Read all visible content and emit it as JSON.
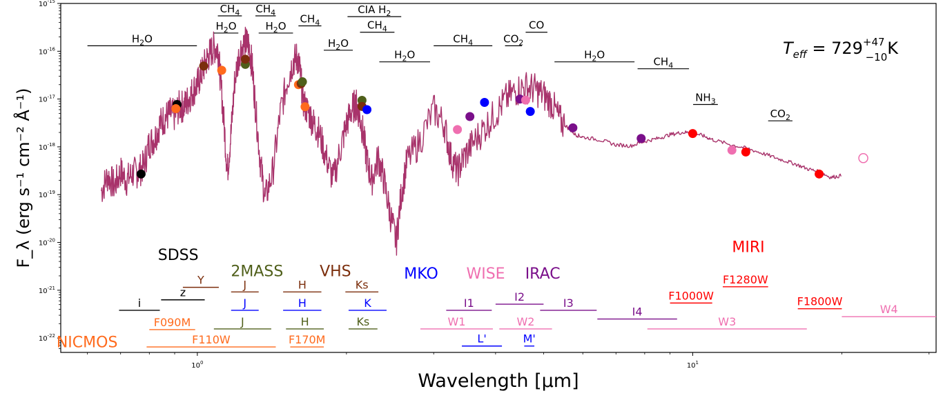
{
  "chart_data": {
    "type": "line",
    "xscale": "log",
    "yscale": "log",
    "xlim": [
      0.53,
      31.0
    ],
    "ylim": [
      5e-23,
      1e-15
    ],
    "xlabel": "Wavelength [μm]",
    "ylabel": "F_λ (erg s⁻¹ cm⁻² Å⁻¹)",
    "x_ticks": [
      {
        "value": 1,
        "label": "10^0"
      },
      {
        "value": 10,
        "label": "10^1"
      }
    ],
    "y_ticks": [
      {
        "value": 1e-22,
        "label": "10^-22"
      },
      {
        "value": 1e-21,
        "label": "10^-21"
      },
      {
        "value": 1e-20,
        "label": "10^-20"
      },
      {
        "value": 1e-19,
        "label": "10^-19"
      },
      {
        "value": 1e-18,
        "label": "10^-18"
      },
      {
        "value": 1e-17,
        "label": "10^-17"
      },
      {
        "value": 1e-16,
        "label": "10^-16"
      },
      {
        "value": 1e-15,
        "label": "10^-15"
      }
    ],
    "teff_annotation": {
      "prefix": "T",
      "sub": "eff",
      "eq": " = 729",
      "sup": "+47",
      "low": "−10",
      "unit": "K"
    },
    "series": [
      {
        "color": "#a8336b",
        "points": [
          [
            0.64,
            1.2e-19
          ],
          [
            0.66,
            2.5e-19
          ],
          [
            0.68,
            1.5e-19
          ],
          [
            0.7,
            3e-19
          ],
          [
            0.72,
            2e-19
          ],
          [
            0.74,
            2.8e-19
          ],
          [
            0.76,
            3e-19
          ],
          [
            0.78,
            4e-19
          ],
          [
            0.8,
            1.2e-18
          ],
          [
            0.82,
            1.5e-18
          ],
          [
            0.84,
            3e-18
          ],
          [
            0.86,
            4e-18
          ],
          [
            0.88,
            5e-18
          ],
          [
            0.9,
            4.5e-18
          ],
          [
            0.92,
            7e-18
          ],
          [
            0.94,
            7e-18
          ],
          [
            0.96,
            1e-17
          ],
          [
            0.98,
            1.5e-17
          ],
          [
            1.0,
            2e-17
          ],
          [
            1.02,
            3.5e-17
          ],
          [
            1.04,
            6e-17
          ],
          [
            1.06,
            9e-17
          ],
          [
            1.08,
            1.2e-16
          ],
          [
            1.1,
            1.1e-16
          ],
          [
            1.11,
            4e-17
          ],
          [
            1.13,
            4e-18
          ],
          [
            1.15,
            3e-19
          ],
          [
            1.17,
            2e-18
          ],
          [
            1.19,
            2.5e-17
          ],
          [
            1.22,
            1.1e-16
          ],
          [
            1.25,
            1.5e-16
          ],
          [
            1.27,
            1.4e-16
          ],
          [
            1.29,
            5e-17
          ],
          [
            1.31,
            7e-18
          ],
          [
            1.34,
            5e-19
          ],
          [
            1.37,
            8e-20
          ],
          [
            1.42,
            3e-19
          ],
          [
            1.47,
            5e-18
          ],
          [
            1.52,
            2.5e-17
          ],
          [
            1.56,
            6e-17
          ],
          [
            1.59,
            7.5e-17
          ],
          [
            1.61,
            4e-17
          ],
          [
            1.64,
            8e-18
          ],
          [
            1.68,
            5e-18
          ],
          [
            1.72,
            3e-18
          ],
          [
            1.76,
            2e-18
          ],
          [
            1.82,
            6e-19
          ],
          [
            1.88,
            2e-19
          ],
          [
            1.95,
            1e-18
          ],
          [
            2.0,
            3e-18
          ],
          [
            2.05,
            6e-18
          ],
          [
            2.09,
            8e-18
          ],
          [
            2.12,
            5e-18
          ],
          [
            2.16,
            2e-18
          ],
          [
            2.2,
            5e-19
          ],
          [
            2.25,
            2e-19
          ],
          [
            2.32,
            6e-19
          ],
          [
            2.38,
            2e-19
          ],
          [
            2.45,
            4e-20
          ],
          [
            2.52,
            1e-20
          ],
          [
            2.58,
            1e-19
          ],
          [
            2.65,
            5e-19
          ],
          [
            2.8,
            1.2e-18
          ],
          [
            3.0,
            6e-18
          ],
          [
            3.15,
            3e-18
          ],
          [
            3.25,
            6e-19
          ],
          [
            3.35,
            3e-19
          ],
          [
            3.45,
            6e-19
          ],
          [
            3.6,
            1.2e-18
          ],
          [
            3.8,
            2.5e-18
          ],
          [
            4.0,
            5e-18
          ],
          [
            4.2,
            1e-17
          ],
          [
            4.4,
            1.5e-17
          ],
          [
            4.6,
            1.8e-17
          ],
          [
            4.8,
            1.6e-17
          ],
          [
            5.0,
            1.2e-17
          ],
          [
            5.2,
            8e-18
          ],
          [
            5.4,
            3.5e-18
          ],
          [
            5.6,
            2.5e-18
          ],
          [
            5.8,
            1.8e-18
          ],
          [
            6.0,
            1.6e-18
          ],
          [
            6.5,
            1.4e-18
          ],
          [
            7.0,
            1.1e-18
          ],
          [
            7.5,
            1.05e-18
          ],
          [
            8.0,
            1.3e-18
          ],
          [
            8.5,
            1.5e-18
          ],
          [
            9.0,
            1.8e-18
          ],
          [
            9.5,
            2e-18
          ],
          [
            10.0,
            2e-18
          ],
          [
            10.5,
            1.7e-18
          ],
          [
            11.0,
            1.4e-18
          ],
          [
            12.0,
            1.1e-18
          ],
          [
            13.0,
            9e-19
          ],
          [
            14.0,
            7e-19
          ],
          [
            15.0,
            5.5e-19
          ],
          [
            16.0,
            4.5e-19
          ],
          [
            17.0,
            3.5e-19
          ],
          [
            18.0,
            3e-19
          ],
          [
            19.0,
            2.3e-19
          ],
          [
            20.0,
            2.5e-19
          ]
        ]
      }
    ],
    "photometry": [
      {
        "x": 0.77,
        "y": 2.7e-19,
        "color": "#000000"
      },
      {
        "x": 0.91,
        "y": 7.7e-18,
        "color": "#000000"
      },
      {
        "x": 0.905,
        "y": 6.3e-18,
        "color": "#ff6a1c"
      },
      {
        "x": 1.03,
        "y": 4.9e-17,
        "color": "#7b2e0c"
      },
      {
        "x": 1.12,
        "y": 4e-17,
        "color": "#ff6a1c"
      },
      {
        "x": 1.25,
        "y": 5.3e-17,
        "color": "#4f5f1a"
      },
      {
        "x": 1.25,
        "y": 6.8e-17,
        "color": "#7b2e0c"
      },
      {
        "x": 1.6,
        "y": 2e-17,
        "color": "#ff6a1c"
      },
      {
        "x": 1.62,
        "y": 2.1e-17,
        "color": "#7b2e0c"
      },
      {
        "x": 1.63,
        "y": 2.3e-17,
        "color": "#4f5f1a"
      },
      {
        "x": 1.65,
        "y": 6.9e-18,
        "color": "#ff6a1c"
      },
      {
        "x": 2.15,
        "y": 9.4e-18,
        "color": "#4f5f1a"
      },
      {
        "x": 2.15,
        "y": 7e-18,
        "color": "#7b2e0c"
      },
      {
        "x": 2.2,
        "y": 6e-18,
        "color": "#0000ff"
      },
      {
        "x": 3.35,
        "y": 2.3e-18,
        "color": "#ef6fb0"
      },
      {
        "x": 3.55,
        "y": 4.3e-18,
        "color": "#7a0f8a"
      },
      {
        "x": 3.8,
        "y": 8.5e-18,
        "color": "#0000ff"
      },
      {
        "x": 4.48,
        "y": 1e-17,
        "color": "#7a0f8a"
      },
      {
        "x": 4.6,
        "y": 9.5e-18,
        "color": "#ef6fb0"
      },
      {
        "x": 4.7,
        "y": 5.5e-18,
        "color": "#0000ff"
      },
      {
        "x": 5.73,
        "y": 2.5e-18,
        "color": "#7a0f8a"
      },
      {
        "x": 7.87,
        "y": 1.5e-18,
        "color": "#7a0f8a"
      },
      {
        "x": 10.0,
        "y": 1.9e-18,
        "color": "#ff0000"
      },
      {
        "x": 12.0,
        "y": 8.5e-19,
        "color": "#ef6fb0"
      },
      {
        "x": 12.8,
        "y": 7.8e-19,
        "color": "#ff0000"
      },
      {
        "x": 18.0,
        "y": 2.7e-19,
        "color": "#ff0000"
      },
      {
        "x": 22.1,
        "y": 5.8e-19,
        "color": "#ef6fb0",
        "open": true
      }
    ],
    "molecule_bands": [
      {
        "label": "H2O",
        "sub": "2",
        "rest": "O",
        "x1": 0.6,
        "x2": 0.998,
        "y": 1.3e-16
      },
      {
        "label": "CH4",
        "sub": "4",
        "rest": "",
        "x1": 1.1,
        "x2": 1.23,
        "y": 5.5e-16
      },
      {
        "label": "CH4",
        "sub": "4",
        "rest": "",
        "x1": 1.31,
        "x2": 1.44,
        "y": 5.5e-16
      },
      {
        "label": "H2O",
        "sub": "2",
        "rest": "O",
        "x1": 1.08,
        "x2": 1.21,
        "y": 2.4e-16
      },
      {
        "label": "H2O",
        "sub": "2",
        "rest": "O",
        "x1": 1.33,
        "x2": 1.56,
        "y": 2.4e-16
      },
      {
        "label": "CH4",
        "sub": "4",
        "rest": "",
        "x1": 1.6,
        "x2": 1.78,
        "y": 3.4e-16
      },
      {
        "label": "CIA H2",
        "sub": "2",
        "rest": "",
        "x1": 2.01,
        "x2": 2.58,
        "y": 5.3e-16
      },
      {
        "label": "CH4",
        "sub": "4",
        "rest": "",
        "x1": 2.13,
        "x2": 2.5,
        "y": 2.5e-16
      },
      {
        "label": "H2O",
        "sub": "2",
        "rest": "O",
        "x1": 1.8,
        "x2": 2.06,
        "y": 1.05e-16
      },
      {
        "label": "H2O",
        "sub": "2",
        "rest": "O",
        "x1": 2.33,
        "x2": 2.95,
        "y": 6e-17
      },
      {
        "label": "CH4",
        "sub": "4",
        "rest": "",
        "x1": 3.0,
        "x2": 3.94,
        "y": 1.3e-16
      },
      {
        "label": "CO2",
        "sub": "2",
        "rest": "",
        "x1": 4.18,
        "x2": 4.52,
        "y": 1.3e-16
      },
      {
        "label": "CO",
        "sub": "",
        "rest": "",
        "x1": 4.6,
        "x2": 5.09,
        "y": 2.5e-16
      },
      {
        "label": "H2O",
        "sub": "2",
        "rest": "O",
        "x1": 5.26,
        "x2": 7.63,
        "y": 6e-17
      },
      {
        "label": "CH4",
        "sub": "4",
        "rest": "",
        "x1": 7.74,
        "x2": 9.83,
        "y": 4.3e-17
      },
      {
        "label": "NH3",
        "sub": "3",
        "rest": "",
        "x1": 10.02,
        "x2": 11.24,
        "y": 7.7e-18
      },
      {
        "label": "CO2",
        "sub": "2",
        "rest": "",
        "x1": 14.2,
        "x2": 15.9,
        "y": 3.5e-18
      }
    ],
    "filter_lines": [
      {
        "label": "i",
        "color": "#000000",
        "x1": 0.695,
        "x2": 0.84,
        "y": 3.8e-22
      },
      {
        "label": "z",
        "color": "#000000",
        "x1": 0.845,
        "x2": 1.035,
        "y": 6.3e-22
      },
      {
        "label": "Y",
        "color": "#7b2e0c",
        "x1": 0.935,
        "x2": 1.105,
        "y": 1.15e-21
      },
      {
        "label": "J",
        "color": "#7b2e0c",
        "x1": 1.17,
        "x2": 1.33,
        "y": 9.2e-22
      },
      {
        "label": "H",
        "color": "#7b2e0c",
        "x1": 1.49,
        "x2": 1.78,
        "y": 9.2e-22
      },
      {
        "label": "Ks",
        "color": "#7b2e0c",
        "x1": 1.99,
        "x2": 2.32,
        "y": 9.2e-22
      },
      {
        "label": "J",
        "color": "#0000ff",
        "x1": 1.17,
        "x2": 1.33,
        "y": 3.8e-22
      },
      {
        "label": "H",
        "color": "#0000ff",
        "x1": 1.49,
        "x2": 1.78,
        "y": 3.8e-22
      },
      {
        "label": "K",
        "color": "#0000ff",
        "x1": 2.02,
        "x2": 2.41,
        "y": 3.8e-22
      },
      {
        "label": "J",
        "color": "#4f5f1a",
        "x1": 1.08,
        "x2": 1.41,
        "y": 1.55e-22
      },
      {
        "label": "H",
        "color": "#4f5f1a",
        "x1": 1.51,
        "x2": 1.8,
        "y": 1.55e-22
      },
      {
        "label": "Ks",
        "color": "#4f5f1a",
        "x1": 2.02,
        "x2": 2.31,
        "y": 1.55e-22
      },
      {
        "label": "F090M",
        "color": "#ff6a1c",
        "x1": 0.8,
        "x2": 0.99,
        "y": 1.5e-22
      },
      {
        "label": "F110W",
        "color": "#ff6a1c",
        "x1": 0.79,
        "x2": 1.44,
        "y": 6.5e-23
      },
      {
        "label": "F170M",
        "color": "#ff6a1c",
        "x1": 1.54,
        "x2": 1.8,
        "y": 6.5e-23
      },
      {
        "label": "W1",
        "color": "#ef6fb0",
        "x1": 2.82,
        "x2": 3.95,
        "y": 1.55e-22
      },
      {
        "label": "W2",
        "color": "#ef6fb0",
        "x1": 4.07,
        "x2": 5.2,
        "y": 1.55e-22
      },
      {
        "label": "W3",
        "color": "#ef6fb0",
        "x1": 8.1,
        "x2": 17.0,
        "y": 1.55e-22
      },
      {
        "label": "W4",
        "color": "#ef6fb0",
        "x1": 20.0,
        "x2": 31.0,
        "y": 2.8e-22
      },
      {
        "label": "L'",
        "color": "#0000ff",
        "x1": 3.42,
        "x2": 4.12,
        "y": 6.8e-23
      },
      {
        "label": "M'",
        "color": "#0000ff",
        "x1": 4.57,
        "x2": 4.79,
        "y": 6.8e-23
      },
      {
        "label": "I1",
        "color": "#7a0f8a",
        "x1": 3.18,
        "x2": 3.93,
        "y": 3.8e-22
      },
      {
        "label": "I2",
        "color": "#7a0f8a",
        "x1": 4.0,
        "x2": 5.0,
        "y": 5.1e-22
      },
      {
        "label": "I3",
        "color": "#7a0f8a",
        "x1": 4.92,
        "x2": 6.4,
        "y": 3.8e-22
      },
      {
        "label": "I4",
        "color": "#7a0f8a",
        "x1": 6.42,
        "x2": 9.3,
        "y": 2.5e-22
      },
      {
        "label": "F1000W",
        "color": "#ff0000",
        "x1": 9.0,
        "x2": 10.95,
        "y": 5.4e-22
      },
      {
        "label": "F1280W",
        "color": "#ff0000",
        "x1": 11.5,
        "x2": 14.2,
        "y": 1.18e-21
      },
      {
        "label": "F1800W",
        "color": "#ff0000",
        "x1": 16.3,
        "x2": 20.0,
        "y": 4.1e-22
      }
    ],
    "instrument_labels": [
      {
        "text": "SDSS",
        "color": "#000000",
        "x": 0.915,
        "y": 4.3e-21
      },
      {
        "text": "2MASS",
        "color": "#4f5f1a",
        "x": 1.32,
        "y": 1.95e-21
      },
      {
        "text": "VHS",
        "color": "#7b2e0c",
        "x": 1.9,
        "y": 1.95e-21
      },
      {
        "text": "MKO",
        "color": "#0000ff",
        "x": 2.83,
        "y": 1.75e-21
      },
      {
        "text": "WISE",
        "color": "#ef6fb0",
        "x": 3.82,
        "y": 1.75e-21
      },
      {
        "text": "IRAC",
        "color": "#7a0f8a",
        "x": 4.98,
        "y": 1.75e-21
      },
      {
        "text": "MIRI",
        "color": "#ff0000",
        "x": 12.95,
        "y": 6.3e-21
      },
      {
        "text": "NICMOS",
        "color": "#ff6a1c",
        "x": 0.599,
        "y": 6.4e-23
      }
    ]
  }
}
